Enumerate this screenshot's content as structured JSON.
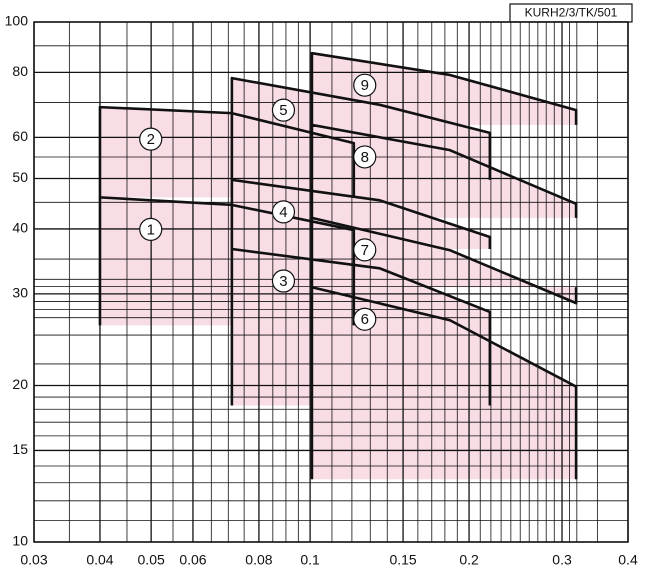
{
  "chart_data": {
    "type": "region",
    "title": "KURH2/3/TK/501",
    "log_x": true,
    "log_y": true,
    "grid": true,
    "xlim": [
      0.03,
      0.4
    ],
    "xticks": [
      0.03,
      0.04,
      0.05,
      0.06,
      0.08,
      0.1,
      0.15,
      0.2,
      0.3,
      0.4
    ],
    "ylim": [
      10,
      100
    ],
    "yticks": [
      10,
      15,
      20,
      30,
      40,
      50,
      60,
      80,
      100
    ],
    "xminor": [
      0.035,
      0.045,
      0.055,
      0.065,
      0.07,
      0.075,
      0.085,
      0.09,
      0.095,
      0.11,
      0.12,
      0.13,
      0.14,
      0.16,
      0.17,
      0.18,
      0.19,
      0.21,
      0.22,
      0.23,
      0.24,
      0.25,
      0.26,
      0.27,
      0.28,
      0.29,
      0.31,
      0.32,
      0.35
    ],
    "yminor": [
      11,
      12,
      13,
      14,
      16,
      17,
      18,
      19,
      22,
      25,
      27,
      28,
      29,
      31,
      32,
      35,
      45,
      55,
      70,
      90
    ],
    "fill": "#f9dde5",
    "stroke": "#111111",
    "series": [
      {
        "name": "1",
        "x": [
          0.04,
          0.04,
          0.071,
          0.121,
          0.121
        ],
        "values": [
          26.1,
          46,
          44.5,
          39.8,
          26.1
        ]
      },
      {
        "name": "2",
        "x": [
          0.04,
          0.04,
          0.071,
          0.121,
          0.121
        ],
        "values": [
          46,
          68.6,
          66.8,
          58.5,
          46
        ]
      },
      {
        "name": "3",
        "x": [
          0.0711,
          0.0711,
          0.1355,
          0.219,
          0.219
        ],
        "values": [
          18.3,
          36.6,
          33.6,
          27.7,
          18.3
        ]
      },
      {
        "name": "4",
        "x": [
          0.0711,
          0.0711,
          0.1355,
          0.219,
          0.219
        ],
        "values": [
          36.6,
          49.7,
          45.4,
          38.6,
          36.6
        ]
      },
      {
        "name": "5",
        "x": [
          0.0711,
          0.0711,
          0.1355,
          0.219,
          0.219
        ],
        "values": [
          49.7,
          78,
          69.3,
          61.2,
          49.7
        ]
      },
      {
        "name": "6",
        "x": [
          0.1008,
          0.1008,
          0.184,
          0.319,
          0.319
        ],
        "values": [
          13.2,
          30.9,
          26.7,
          19.9,
          13.2
        ]
      },
      {
        "name": "7",
        "x": [
          0.1008,
          0.1008,
          0.184,
          0.319,
          0.319
        ],
        "values": [
          30.9,
          42,
          36.4,
          28.8,
          30.9
        ]
      },
      {
        "name": "8",
        "x": [
          0.1008,
          0.1008,
          0.184,
          0.319,
          0.319
        ],
        "values": [
          42,
          63.4,
          56.7,
          44.7,
          42
        ]
      },
      {
        "name": "9",
        "x": [
          0.1008,
          0.1008,
          0.184,
          0.319,
          0.319
        ],
        "values": [
          63.4,
          87.1,
          79.1,
          67.7,
          63.4
        ]
      }
    ]
  }
}
